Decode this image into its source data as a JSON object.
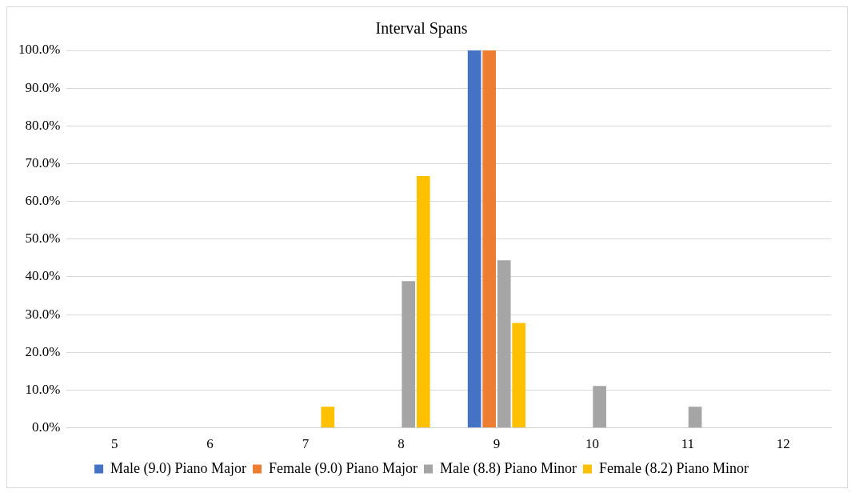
{
  "chart_data": {
    "type": "bar",
    "title": "Interval Spans",
    "categories": [
      "5",
      "6",
      "7",
      "8",
      "9",
      "10",
      "11",
      "12"
    ],
    "series": [
      {
        "name": "Male (9.0) Piano Major",
        "color": "#4472c4",
        "values": [
          0,
          0,
          0,
          0,
          100,
          0,
          0,
          0
        ]
      },
      {
        "name": "Female (9.0) Piano Major",
        "color": "#ed7d31",
        "values": [
          0,
          0,
          0,
          0,
          100,
          0,
          0,
          0
        ]
      },
      {
        "name": "Male (8.8) Piano Minor",
        "color": "#a5a5a5",
        "values": [
          0,
          0,
          0,
          38.9,
          44.4,
          11.1,
          5.6,
          0
        ]
      },
      {
        "name": "Female (8.2) Piano Minor",
        "color": "#ffc000",
        "values": [
          0,
          0,
          5.6,
          66.7,
          27.8,
          0,
          0,
          0
        ]
      }
    ],
    "ylim": [
      0,
      100
    ],
    "yticks": [
      {
        "value": 0,
        "label": "0.0%"
      },
      {
        "value": 10,
        "label": "10.0%"
      },
      {
        "value": 20,
        "label": "20.0%"
      },
      {
        "value": 30,
        "label": "30.0%"
      },
      {
        "value": 40,
        "label": "40.0%"
      },
      {
        "value": 50,
        "label": "50.0%"
      },
      {
        "value": 60,
        "label": "60.0%"
      },
      {
        "value": 70,
        "label": "70.0%"
      },
      {
        "value": 80,
        "label": "80.0%"
      },
      {
        "value": 90,
        "label": "90.0%"
      },
      {
        "value": 100,
        "label": "100.0%"
      }
    ],
    "grid": "y",
    "legend": "bottom"
  }
}
